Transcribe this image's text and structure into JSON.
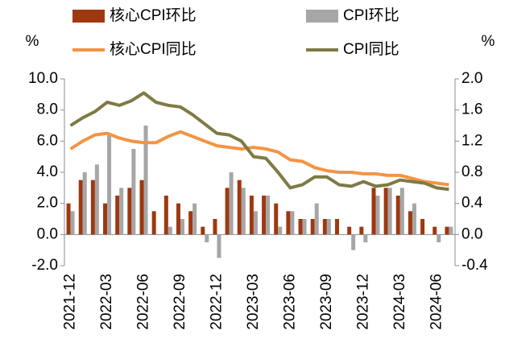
{
  "chart_data": {
    "type": "bar_line",
    "y_label": "%",
    "y2_label": "%",
    "categories": [
      "2021-12",
      null,
      null,
      "2022-03",
      null,
      null,
      "2022-06",
      null,
      null,
      "2022-09",
      null,
      null,
      "2022-12",
      null,
      null,
      "2023-03",
      null,
      null,
      "2023-06",
      null,
      null,
      "2023-09",
      null,
      null,
      "2023-12",
      null,
      null,
      "2024-03",
      null,
      null,
      "2024-06",
      null
    ],
    "series": [
      {
        "name": "核心CPI环比",
        "kind": "bar",
        "axis": "y2",
        "color": "#9e3811",
        "values": [
          0.4,
          0.7,
          0.7,
          0.4,
          0.5,
          0.6,
          0.7,
          0.3,
          0.5,
          0.4,
          0.3,
          0.1,
          0.2,
          0.6,
          0.7,
          0.5,
          0.5,
          0.4,
          0.3,
          0.2,
          0.2,
          0.2,
          0.2,
          0.1,
          0.1,
          0.6,
          0.6,
          0.5,
          0.3,
          0.2,
          0.1,
          0.1
        ]
      },
      {
        "name": "CPI环比",
        "kind": "bar",
        "axis": "y2",
        "color": "#a6a6a6",
        "values": [
          0.3,
          0.8,
          0.9,
          1.3,
          0.6,
          1.1,
          1.4,
          0.0,
          0.1,
          0.2,
          0.4,
          -0.1,
          -0.3,
          0.8,
          0.6,
          0.3,
          0.5,
          0.1,
          0.3,
          0.2,
          0.4,
          0.2,
          0.0,
          -0.2,
          -0.1,
          0.5,
          0.6,
          0.6,
          0.4,
          0.0,
          -0.1,
          0.1
        ]
      },
      {
        "name": "核心CPI同比",
        "kind": "line",
        "axis": "y",
        "color": "#f39444",
        "values": [
          5.5,
          6.0,
          6.4,
          6.5,
          6.2,
          6.0,
          5.9,
          5.9,
          6.3,
          6.6,
          6.3,
          6.0,
          5.7,
          5.6,
          5.5,
          5.6,
          5.5,
          5.3,
          4.8,
          4.7,
          4.3,
          4.1,
          4.0,
          4.0,
          3.9,
          3.9,
          3.8,
          3.8,
          3.6,
          3.4,
          3.3,
          3.2
        ]
      },
      {
        "name": "CPI同比",
        "kind": "line",
        "axis": "y",
        "color": "#7f7a45",
        "values": [
          7.0,
          7.5,
          7.9,
          8.5,
          8.3,
          8.6,
          9.1,
          8.5,
          8.3,
          8.2,
          7.7,
          7.1,
          6.5,
          6.4,
          6.0,
          5.0,
          4.9,
          4.0,
          3.0,
          3.2,
          3.7,
          3.7,
          3.2,
          3.1,
          3.4,
          3.1,
          3.2,
          3.5,
          3.4,
          3.3,
          3.0,
          2.9
        ]
      }
    ],
    "ylim": [
      -2,
      10
    ],
    "yticks": [
      {
        "value": -2,
        "label": "-2.0"
      },
      {
        "value": 0,
        "label": "0.0"
      },
      {
        "value": 2,
        "label": "2.0"
      },
      {
        "value": 4,
        "label": "4.0"
      },
      {
        "value": 6,
        "label": "6.0"
      },
      {
        "value": 8,
        "label": "8.0"
      },
      {
        "value": 10,
        "label": "10.0"
      }
    ],
    "y2lim": [
      -0.4,
      2
    ],
    "y2ticks": [
      -0.4,
      {
        "value": 0,
        "label": "0.0"
      },
      0.4,
      0.8,
      1.2,
      1.6,
      {
        "value": 2,
        "label": "2.0"
      }
    ]
  }
}
